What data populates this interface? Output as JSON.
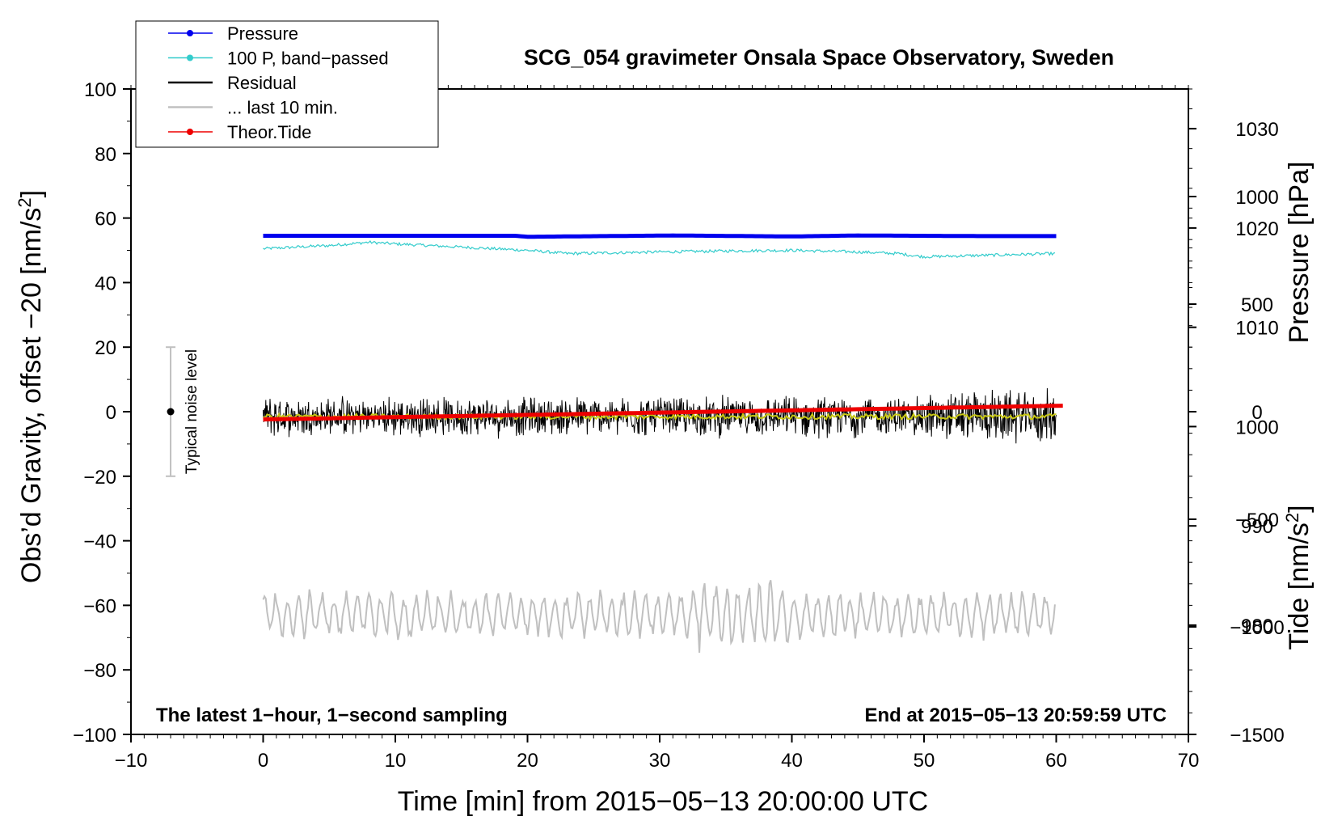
{
  "chart_data": {
    "type": "line",
    "title": "SCG_054 gravimeter Onsala Space Observatory, Sweden",
    "xlabel": "Time [min] from 2015−05−13 20:00:00 UTC",
    "ylabel_left": "Obs’d Gravity, offset −20 [nm/s",
    "ylabel_left_sup": "2",
    "ylabel_left_end": "]",
    "ylabel_pressure": "Pressure [hPa]",
    "ylabel_tide": "Tide [nm/s",
    "ylabel_tide_sup": "2",
    "ylabel_tide_end": "]",
    "xlim": [
      -10,
      70
    ],
    "ylim": [
      -100,
      100
    ],
    "x_ticks": [
      {
        "value": -10,
        "label": "−10"
      },
      {
        "value": 0,
        "label": "0"
      },
      {
        "value": 10,
        "label": "10"
      },
      {
        "value": 20,
        "label": "20"
      },
      {
        "value": 30,
        "label": "30"
      },
      {
        "value": 40,
        "label": "40"
      },
      {
        "value": 50,
        "label": "50"
      },
      {
        "value": 60,
        "label": "60"
      },
      {
        "value": 70,
        "label": "70"
      }
    ],
    "y_ticks": [
      {
        "value": 100,
        "label": "100"
      },
      {
        "value": 80,
        "label": "80"
      },
      {
        "value": 60,
        "label": "60"
      },
      {
        "value": 40,
        "label": "40"
      },
      {
        "value": 20,
        "label": "20"
      },
      {
        "value": 0,
        "label": "0"
      },
      {
        "value": -20,
        "label": "−20"
      },
      {
        "value": -40,
        "label": "−40"
      },
      {
        "value": -60,
        "label": "−60"
      },
      {
        "value": -80,
        "label": "−80"
      },
      {
        "value": -100,
        "label": "−100"
      }
    ],
    "pressure_axis": {
      "range": [
        969,
        1034
      ],
      "ticks": [
        {
          "value": 1030,
          "label": "1030"
        },
        {
          "value": 1020,
          "label": "1020"
        },
        {
          "value": 1010,
          "label": "1010"
        },
        {
          "value": 1000,
          "label": "1000"
        },
        {
          "value": 990,
          "label": "990"
        },
        {
          "value": 980,
          "label": "980"
        }
      ]
    },
    "tide_axis": {
      "range": [
        -1500,
        1500
      ],
      "ticks": [
        {
          "value": 1000,
          "label": "1000"
        },
        {
          "value": 500,
          "label": "500"
        },
        {
          "value": 0,
          "label": "0"
        },
        {
          "value": -500,
          "label": "−500"
        },
        {
          "value": -1000,
          "label": "−1000"
        },
        {
          "value": -1500,
          "label": "−1500"
        }
      ]
    },
    "legend": [
      {
        "label": "Pressure",
        "color": "#0000ee",
        "marker": true
      },
      {
        "label": "100 P, band−passed",
        "color": "#33cccc",
        "marker": true
      },
      {
        "label": "Residual",
        "color": "#000000",
        "marker": false
      },
      {
        "label": "... last 10 min.",
        "color": "#c0c0c0",
        "marker": false
      },
      {
        "label": "Theor.Tide",
        "color": "#ee0000",
        "marker": true
      }
    ],
    "series": [
      {
        "name": "Pressure",
        "color": "#0000ee",
        "x": [
          0,
          10,
          19,
          20,
          31,
          40,
          45,
          55,
          60
        ],
        "y": [
          54.5,
          54.5,
          54.5,
          54.2,
          54.6,
          54.3,
          54.6,
          54.4,
          54.4
        ]
      },
      {
        "name": "100 P, band-passed",
        "color": "#33cccc",
        "x": [
          0,
          5,
          8,
          10,
          15,
          20,
          23,
          30,
          35,
          40,
          45,
          48,
          50,
          55,
          60
        ],
        "y": [
          50.5,
          51.5,
          52.5,
          52,
          51,
          50,
          49,
          49.5,
          49.8,
          50,
          49.5,
          49,
          48,
          48.5,
          49
        ]
      },
      {
        "name": "Residual",
        "color": "#000000",
        "x": [
          0,
          60
        ],
        "y": [
          -1.5,
          -1.5
        ],
        "noise_amplitude": 7
      },
      {
        "name": "Residual smoothed",
        "color": "#c8c814",
        "x": [
          0,
          60
        ],
        "y": [
          -1.5,
          -1.5
        ]
      },
      {
        "name": "... last 10 min.",
        "color": "#c0c0c0",
        "x": [
          0,
          60
        ],
        "y": [
          -63,
          -63
        ],
        "noise_amplitude": 10
      },
      {
        "name": "Theor.Tide",
        "color": "#ee0000",
        "axis": "tide",
        "x": [
          0,
          60.5
        ],
        "y": [
          -36,
          28
        ]
      }
    ],
    "noise_bar": {
      "x": -7,
      "y": 0,
      "low": -20,
      "high": 20,
      "label": "Typical noise level"
    },
    "annotation_left": "The latest 1−hour, 1−second sampling",
    "annotation_right": "End at 2015−05−13 20:59:59 UTC"
  }
}
